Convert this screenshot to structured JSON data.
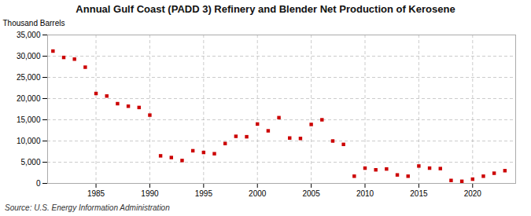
{
  "chart_data": {
    "type": "scatter",
    "title": "Annual Gulf Coast (PADD 3) Refinery and Blender Net Production of Kerosene",
    "ylabel": "Thousand Barrels",
    "annotation": "Source: U.S. Energy Information Administration",
    "x": [
      1981,
      1982,
      1983,
      1984,
      1985,
      1986,
      1987,
      1988,
      1989,
      1990,
      1991,
      1992,
      1993,
      1994,
      1995,
      1996,
      1997,
      1998,
      1999,
      2000,
      2001,
      2002,
      2003,
      2004,
      2005,
      2006,
      2007,
      2008,
      2009,
      2010,
      2011,
      2012,
      2013,
      2014,
      2015,
      2016,
      2017,
      2018,
      2019,
      2020,
      2021,
      2022,
      2023
    ],
    "values": [
      31200,
      29700,
      29300,
      27400,
      21200,
      20600,
      18800,
      18200,
      17900,
      16100,
      6500,
      6100,
      5400,
      7700,
      7300,
      7000,
      9400,
      11100,
      11000,
      14000,
      12400,
      15500,
      10700,
      10600,
      13900,
      15000,
      10000,
      9200,
      1700,
      3600,
      3200,
      3400,
      2000,
      1700,
      4100,
      3600,
      3500,
      700,
      500,
      1000,
      1700,
      2400,
      3000
    ],
    "color": "#cc0000",
    "marker": "square",
    "grid": true,
    "xlim": [
      1980.5,
      2024
    ],
    "xticks": [
      1985,
      1990,
      1995,
      2000,
      2005,
      2010,
      2015,
      2020
    ],
    "ylim": [
      0,
      35000
    ],
    "yticks": [
      0,
      {
        "value": 5000,
        "label": "5,000"
      },
      {
        "value": 10000,
        "label": "10,000"
      },
      {
        "value": 15000,
        "label": "15,000"
      },
      {
        "value": 20000,
        "label": "20,000"
      },
      {
        "value": 25000,
        "label": "25,000"
      },
      {
        "value": 30000,
        "label": "30,000"
      },
      {
        "value": 35000,
        "label": "35,000"
      }
    ]
  }
}
